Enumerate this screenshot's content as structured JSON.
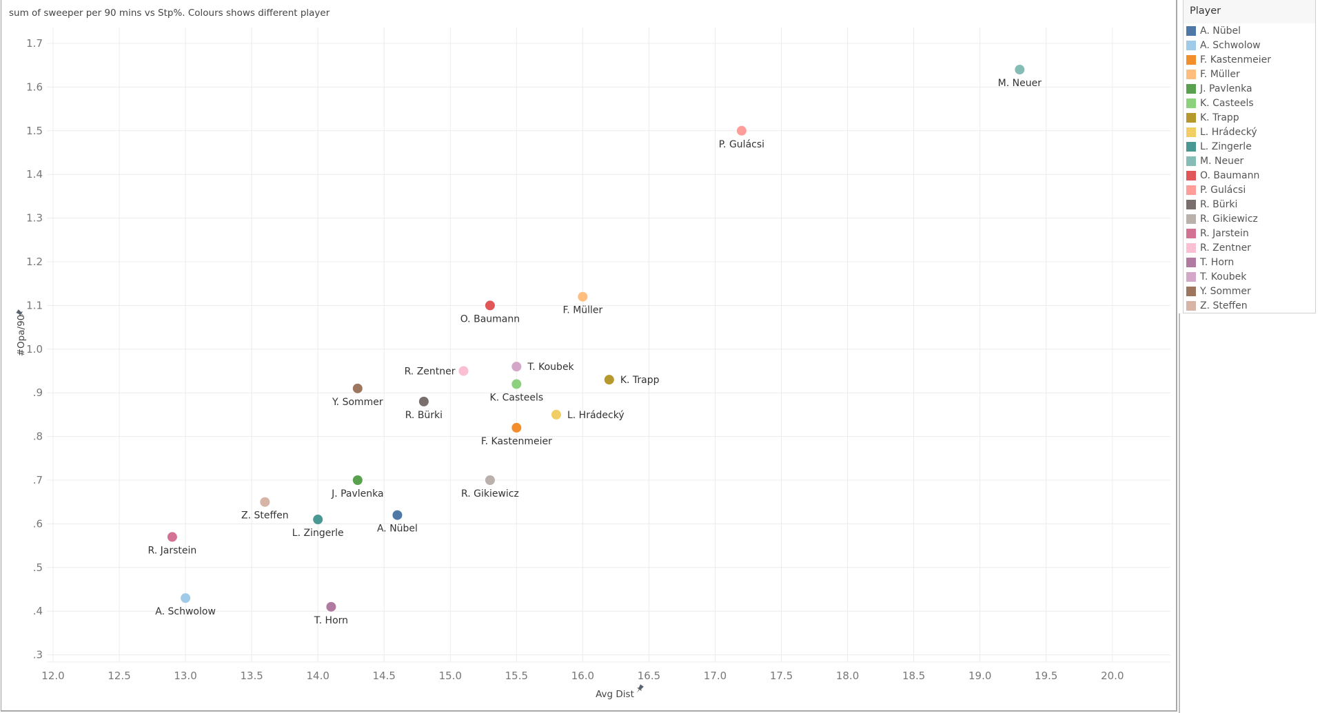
{
  "chart_data": {
    "type": "scatter",
    "title": "sum of sweeper per 90 mins vs Stp%.  Colours shows different player",
    "xlabel": "Avg Dist",
    "ylabel": "#Opa/90",
    "xlim": [
      12.0,
      20.45
    ],
    "ylim": [
      0.3,
      1.74
    ],
    "xticks": [
      "12.0",
      "12.5",
      "13.0",
      "13.5",
      "14.0",
      "14.5",
      "15.0",
      "15.5",
      "16.0",
      "16.5",
      "17.0",
      "17.5",
      "18.0",
      "18.5",
      "19.0",
      "19.5",
      "20.0"
    ],
    "xtick_values": [
      12.0,
      12.5,
      13.0,
      13.5,
      14.0,
      14.5,
      15.0,
      15.5,
      16.0,
      16.5,
      17.0,
      17.5,
      18.0,
      18.5,
      19.0,
      19.5,
      20.0
    ],
    "yticks": [
      ".3",
      ".4",
      ".5",
      ".6",
      ".7",
      ".8",
      ".9",
      "1.0",
      "1.1",
      "1.2",
      "1.3",
      "1.4",
      "1.5",
      "1.6",
      "1.7"
    ],
    "ytick_values": [
      0.3,
      0.4,
      0.5,
      0.6,
      0.7,
      0.8,
      0.9,
      1.0,
      1.1,
      1.2,
      1.3,
      1.4,
      1.5,
      1.6,
      1.7
    ],
    "grid": true,
    "legend_position": "right",
    "legend_title": "Player",
    "points": [
      {
        "player": "A. Nübel",
        "x": 14.6,
        "y": 0.62,
        "color": "#4e79a7",
        "label_pos": "below"
      },
      {
        "player": "A. Schwolow",
        "x": 13.0,
        "y": 0.43,
        "color": "#a0cbe8",
        "label_pos": "below"
      },
      {
        "player": "F. Kastenmeier",
        "x": 15.5,
        "y": 0.82,
        "color": "#f28e2b",
        "label_pos": "below"
      },
      {
        "player": "F. Müller",
        "x": 16.0,
        "y": 1.12,
        "color": "#ffbe7d",
        "label_pos": "below"
      },
      {
        "player": "J. Pavlenka",
        "x": 14.3,
        "y": 0.7,
        "color": "#59a14f",
        "label_pos": "below"
      },
      {
        "player": "K. Casteels",
        "x": 15.5,
        "y": 0.92,
        "color": "#8cd17d",
        "label_pos": "below"
      },
      {
        "player": "K. Trapp",
        "x": 16.2,
        "y": 0.93,
        "color": "#b6992d",
        "label_pos": "right"
      },
      {
        "player": "L. Hrádecký",
        "x": 15.8,
        "y": 0.85,
        "color": "#f1ce63",
        "label_pos": "right"
      },
      {
        "player": "L. Zingerle",
        "x": 14.0,
        "y": 0.61,
        "color": "#499894",
        "label_pos": "below"
      },
      {
        "player": "M. Neuer",
        "x": 19.3,
        "y": 1.64,
        "color": "#86bcb6",
        "label_pos": "below"
      },
      {
        "player": "O. Baumann",
        "x": 15.3,
        "y": 1.1,
        "color": "#e15759",
        "label_pos": "below"
      },
      {
        "player": "P. Gulácsi",
        "x": 17.2,
        "y": 1.5,
        "color": "#ff9d9a",
        "label_pos": "below"
      },
      {
        "player": "R. Bürki",
        "x": 14.8,
        "y": 0.88,
        "color": "#79706e",
        "label_pos": "below"
      },
      {
        "player": "R. Gikiewicz",
        "x": 15.3,
        "y": 0.7,
        "color": "#bab0ac",
        "label_pos": "below"
      },
      {
        "player": "R. Jarstein",
        "x": 12.9,
        "y": 0.57,
        "color": "#d37295",
        "label_pos": "below"
      },
      {
        "player": "R. Zentner",
        "x": 15.1,
        "y": 0.95,
        "color": "#fabfd2",
        "label_pos": "left"
      },
      {
        "player": "T. Horn",
        "x": 14.1,
        "y": 0.41,
        "color": "#b07aa1",
        "label_pos": "below"
      },
      {
        "player": "T. Koubek",
        "x": 15.5,
        "y": 0.96,
        "color": "#d4a6c8",
        "label_pos": "right"
      },
      {
        "player": "Y. Sommer",
        "x": 14.3,
        "y": 0.91,
        "color": "#9d7660",
        "label_pos": "below"
      },
      {
        "player": "Z. Steffen",
        "x": 13.6,
        "y": 0.65,
        "color": "#d7b5a6",
        "label_pos": "below"
      }
    ]
  },
  "icons": {
    "pin": "pin-icon"
  }
}
